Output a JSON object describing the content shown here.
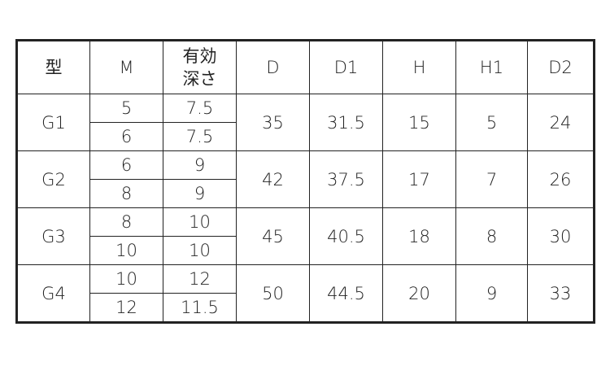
{
  "headers": [
    "型",
    "M",
    "有効\n深さ",
    "D",
    "D1",
    "H",
    "H1",
    "D2"
  ],
  "header_depth_line1": "有効",
  "header_depth_line2": "深さ",
  "rows": [
    {
      "type": "G1",
      "sub": [
        {
          "M": "5",
          "depth": "7.5"
        },
        {
          "M": "6",
          "depth": "7.5"
        }
      ],
      "D": "35",
      "D1": "31.5",
      "H": "15",
      "H1": "5",
      "D2": "24"
    },
    {
      "type": "G2",
      "sub": [
        {
          "M": "6",
          "depth": "9"
        },
        {
          "M": "8",
          "depth": "9"
        }
      ],
      "D": "42",
      "D1": "37.5",
      "H": "17",
      "H1": "7",
      "D2": "26"
    },
    {
      "type": "G3",
      "sub": [
        {
          "M": "8",
          "depth": "10"
        },
        {
          "M": "10",
          "depth": "10"
        }
      ],
      "D": "45",
      "D1": "40.5",
      "H": "18",
      "H1": "8",
      "D2": "30"
    },
    {
      "type": "G4",
      "sub": [
        {
          "M": "10",
          "depth": "12"
        },
        {
          "M": "12",
          "depth": "11.5"
        }
      ],
      "D": "50",
      "D1": "44.5",
      "H": "20",
      "H1": "9",
      "D2": "33"
    }
  ]
}
